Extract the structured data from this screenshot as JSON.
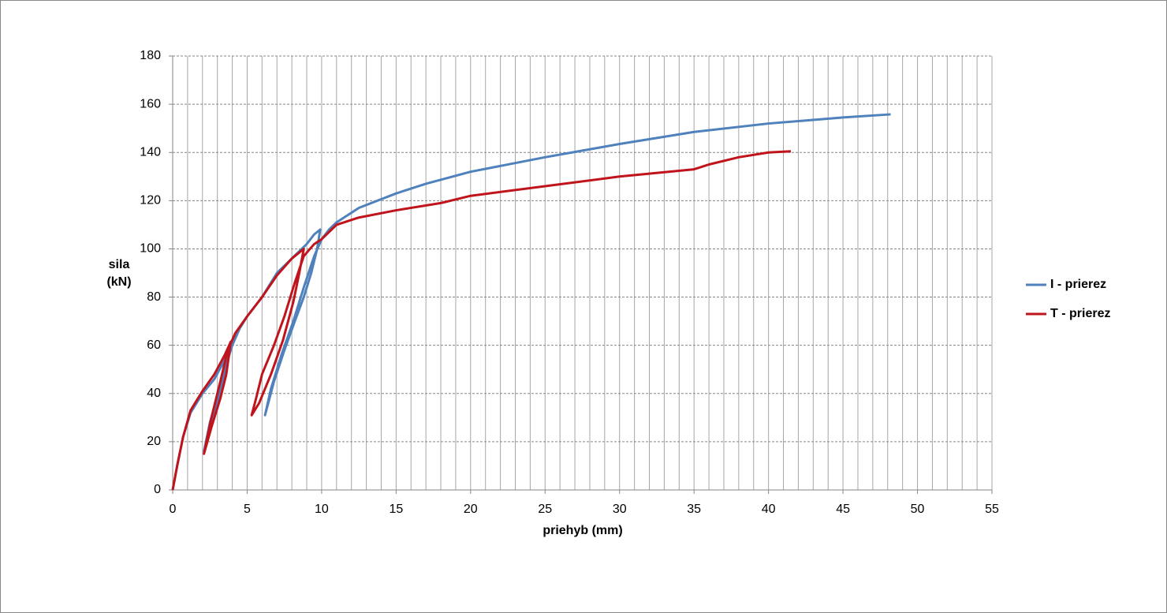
{
  "chart_data": {
    "type": "line",
    "x_label": "priehyb (mm)",
    "y_label": "sila (kN)",
    "xlim": [
      0,
      55
    ],
    "xticks": [
      0,
      5,
      10,
      15,
      20,
      25,
      30,
      35,
      40,
      45,
      50,
      55
    ],
    "ylim": [
      0,
      180
    ],
    "yticks": [
      0,
      20,
      40,
      60,
      80,
      100,
      120,
      140,
      160,
      180
    ],
    "grid": true,
    "legend": "right",
    "series": [
      {
        "name": "I - prierez",
        "color": "#4f81bd",
        "x": [
          0,
          0.3,
          0.7,
          1.2,
          2,
          2.8,
          3.5,
          3.9,
          3.6,
          3.1,
          2.5,
          2.1,
          2.5,
          3.1,
          3.6,
          4.0,
          4.5,
          5,
          6,
          7,
          8,
          9,
          9.5,
          9.9,
          9.7,
          9.3,
          8.8,
          8.2,
          7.5,
          6.8,
          6.2,
          6.6,
          7.3,
          8.1,
          8.8,
          9.5,
          10,
          10.5,
          11,
          12.5,
          15,
          17,
          20,
          25,
          30,
          35,
          40,
          45,
          48.2
        ],
        "values": [
          0,
          10,
          22,
          32,
          40,
          46,
          54,
          61,
          50,
          38,
          25,
          16,
          28,
          40,
          52,
          60,
          67,
          72,
          80,
          90,
          96,
          102,
          106,
          108,
          100,
          90,
          80,
          70,
          58,
          45,
          31,
          42,
          56,
          70,
          84,
          97,
          104,
          108,
          111,
          117,
          123,
          127,
          132,
          138,
          143.5,
          148.5,
          152,
          154.5,
          155.8
        ]
      },
      {
        "name": "T - prierez",
        "color": "#c0141c",
        "x": [
          0,
          0.3,
          0.7,
          1.2,
          2,
          2.8,
          3.5,
          3.9,
          3.6,
          3.2,
          2.6,
          2.1,
          2.6,
          3.2,
          3.7,
          4.2,
          5,
          6,
          7,
          8,
          8.8,
          8.5,
          8.1,
          7.4,
          6.6,
          5.8,
          5.3,
          5.6,
          6,
          6.8,
          7.5,
          8.2,
          8.8,
          9.5,
          10,
          11,
          12.5,
          15,
          18,
          20,
          25,
          30,
          35,
          36,
          38,
          40,
          41.5
        ],
        "values": [
          0,
          10,
          22,
          33,
          41,
          48,
          56,
          61.5,
          48,
          38,
          26,
          15,
          30,
          45,
          58,
          65,
          72,
          80,
          89,
          96,
          100,
          90,
          78,
          62,
          48,
          36,
          31,
          38,
          48,
          60,
          72,
          86,
          97,
          102,
          104,
          110,
          113,
          116,
          119,
          122,
          126,
          130,
          133,
          135,
          138,
          140,
          140.5
        ]
      }
    ]
  }
}
